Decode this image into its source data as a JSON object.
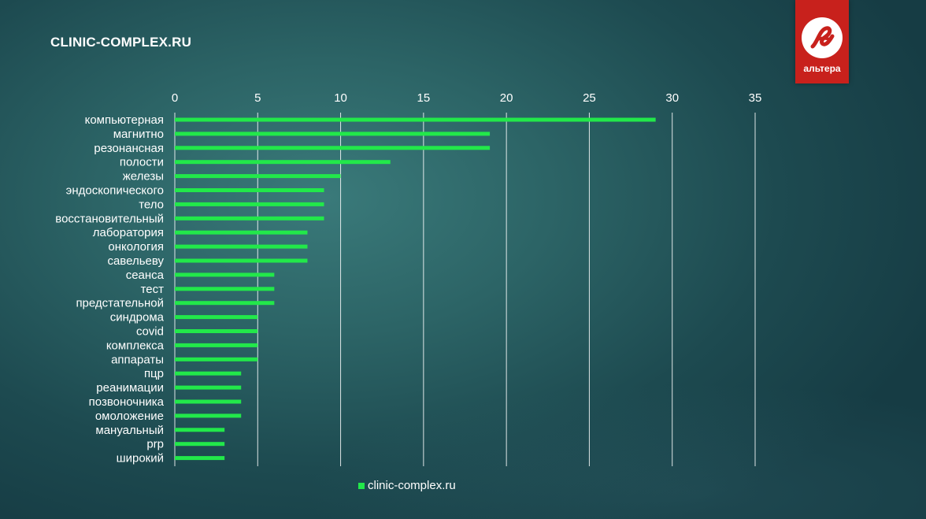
{
  "site_title": "CLINIC-COMPLEX.RU",
  "logo": {
    "text": "альтера",
    "icon": "altera-logo-icon",
    "color": "#c8211c"
  },
  "chart_data": {
    "type": "bar",
    "orientation": "horizontal",
    "categories": [
      "компьютерная",
      "магнитно",
      "резонансная",
      "полости",
      "железы",
      "эндоскопического",
      "тело",
      "восстановительный",
      "лаборатория",
      "онкология",
      "савельеву",
      "сеанса",
      "тест",
      "предстательной",
      "синдрома",
      "covid",
      "комплекса",
      "аппараты",
      "пцр",
      "реанимации",
      "позвоночника",
      "омоложение",
      "мануальный",
      "prp",
      "широкий"
    ],
    "series": [
      {
        "name": "clinic-complex.ru",
        "color": "#22e84a",
        "values": [
          29,
          19,
          19,
          13,
          10,
          9,
          9,
          9,
          8,
          8,
          8,
          6,
          6,
          6,
          5,
          5,
          5,
          5,
          4,
          4,
          4,
          4,
          3,
          3,
          3
        ]
      }
    ],
    "xlim": [
      0,
      35
    ],
    "xticks": [
      "0",
      "5",
      "10",
      "15",
      "20",
      "25",
      "30",
      "35"
    ],
    "axis_position": "top",
    "grid": true,
    "legend_position": "bottom"
  }
}
